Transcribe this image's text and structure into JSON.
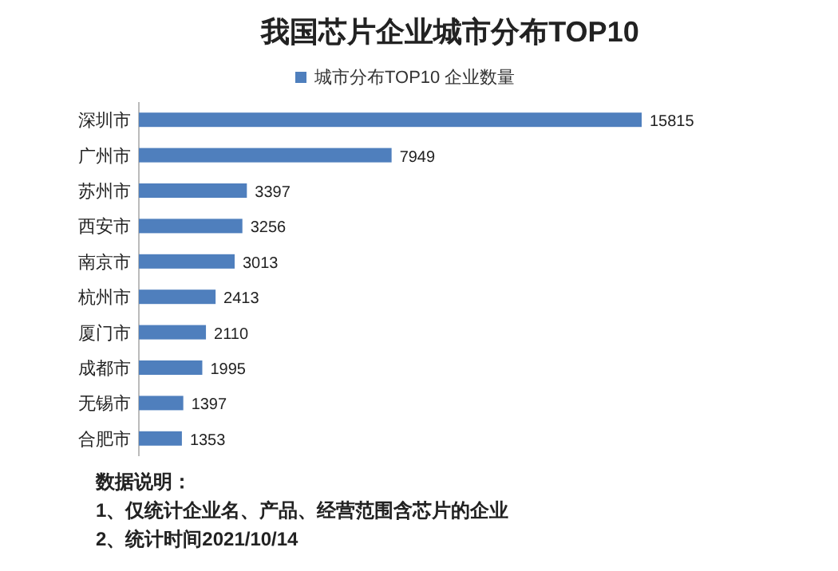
{
  "chart_data": {
    "type": "bar",
    "orientation": "horizontal",
    "title": "我国芯片企业城市分布TOP10",
    "categories": [
      "深圳市",
      "广州市",
      "苏州市",
      "西安市",
      "南京市",
      "杭州市",
      "厦门市",
      "成都市",
      "无锡市",
      "合肥市"
    ],
    "series": [
      {
        "name": "城市分布TOP10 企业数量",
        "color": "#4f7fbd",
        "values": [
          15815,
          7949,
          3397,
          3256,
          3013,
          2413,
          2110,
          1995,
          1397,
          1353
        ]
      }
    ],
    "data_labels": true,
    "legend": "top",
    "grid": false,
    "annotations": [
      "数据说明：",
      "1、仅统计企业名、产品、经营范围含芯片的企业",
      "2、统计时间2021/10/14"
    ]
  }
}
